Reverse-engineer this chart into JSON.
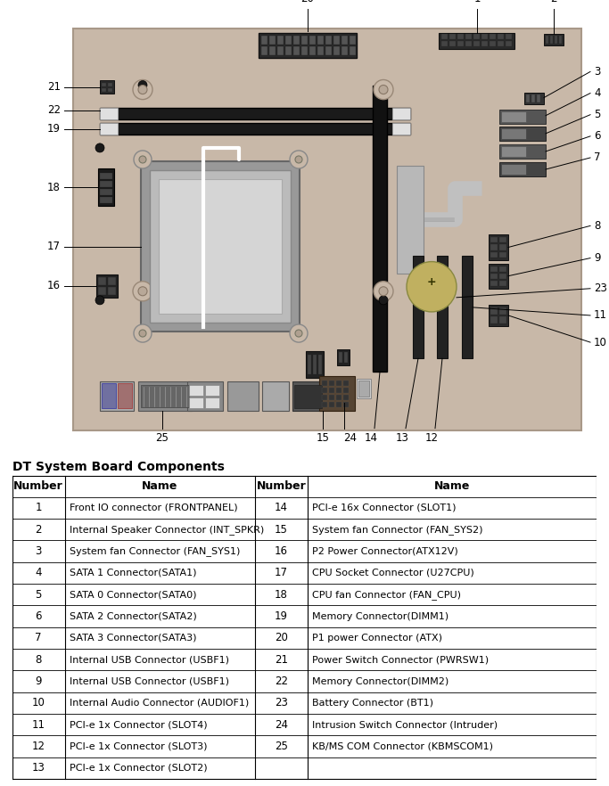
{
  "title": "DT System Board Components",
  "fig_bg": "#ffffff",
  "board_color": "#c8b8a8",
  "board_border": "#a89888",
  "components": [
    {
      "num": 1,
      "name": "Front IO connector (FRONTPANEL)"
    },
    {
      "num": 2,
      "name": "Internal Speaker Connector (INT_SPKR)"
    },
    {
      "num": 3,
      "name": "System fan Connector (FAN_SYS1)"
    },
    {
      "num": 4,
      "name": "SATA 1 Connector(SATA1)"
    },
    {
      "num": 5,
      "name": "SATA 0 Connector(SATA0)"
    },
    {
      "num": 6,
      "name": "SATA 2 Connector(SATA2)"
    },
    {
      "num": 7,
      "name": "SATA 3 Connector(SATA3)"
    },
    {
      "num": 8,
      "name": "Internal USB Connector (USBF1)"
    },
    {
      "num": 9,
      "name": "Internal USB Connector (USBF1)"
    },
    {
      "num": 10,
      "name": "Internal Audio Connector (AUDIOF1)"
    },
    {
      "num": 11,
      "name": "PCI-e 1x Connector (SLOT4)"
    },
    {
      "num": 12,
      "name": "PCI-e 1x Connector (SLOT3)"
    },
    {
      "num": 13,
      "name": "PCI-e 1x Connector (SLOT2)"
    },
    {
      "num": 14,
      "name": "PCI-e 16x Connector (SLOT1)"
    },
    {
      "num": 15,
      "name": "System fan Connector (FAN_SYS2)"
    },
    {
      "num": 16,
      "name": "P2 Power Connector(ATX12V)"
    },
    {
      "num": 17,
      "name": "CPU Socket Connector (U27CPU)"
    },
    {
      "num": 18,
      "name": "CPU fan Connector (FAN_CPU)"
    },
    {
      "num": 19,
      "name": "Memory Connector(DIMM1)"
    },
    {
      "num": 20,
      "name": "P1 power Connector (ATX)"
    },
    {
      "num": 21,
      "name": "Power Switch Connector (PWRSW1)"
    },
    {
      "num": 22,
      "name": "Memory Connector(DIMM2)"
    },
    {
      "num": 23,
      "name": "Battery Connector (BT1)"
    },
    {
      "num": 24,
      "name": "Intrusion Switch Connector (Intruder)"
    },
    {
      "num": 25,
      "name": "KB/MS COM Connector (KBMSCOM1)"
    }
  ]
}
